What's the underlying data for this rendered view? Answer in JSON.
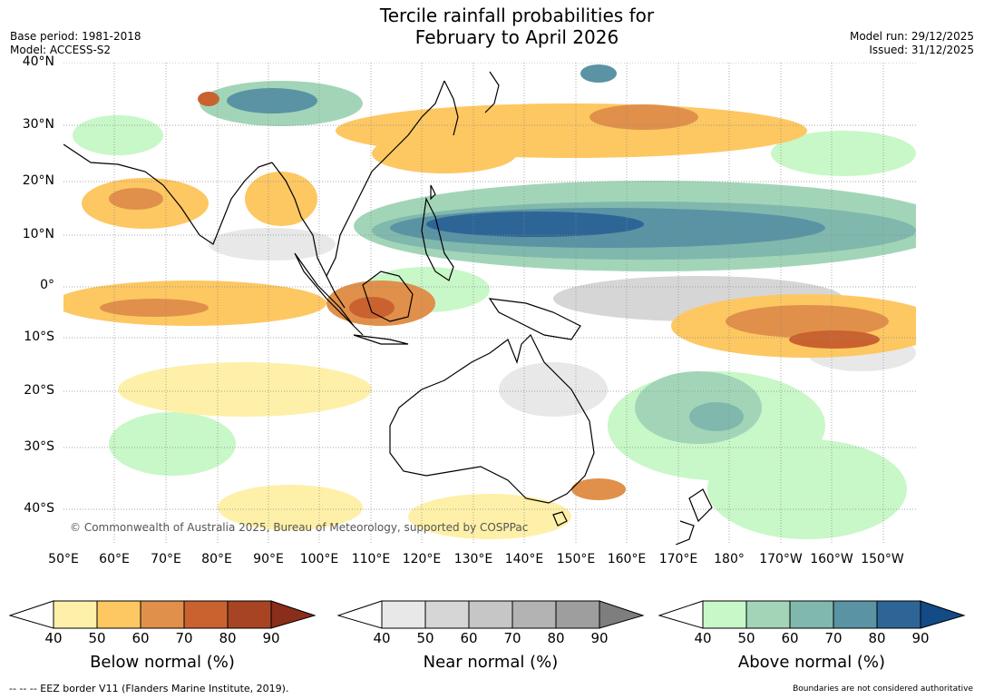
{
  "title_line1": "Tercile rainfall probabilities for",
  "title_line2": "February to April 2026",
  "base_period": "Base period: 1981-2018",
  "model": "Model: ACCESS-S2",
  "model_run": "Model run: 29/12/2025",
  "issued": "Issued: 31/12/2025",
  "copyright": "© Commonwealth of Australia 2025, Bureau of Meteorology, supported by COSPPac",
  "lat_labels": [
    "40°N",
    "30°N",
    "20°N",
    "10°N",
    "0°",
    "10°S",
    "20°S",
    "30°S",
    "40°S"
  ],
  "lon_labels": [
    "50°E",
    "60°E",
    "70°E",
    "80°E",
    "90°E",
    "100°E",
    "110°E",
    "120°E",
    "130°E",
    "140°E",
    "150°E",
    "160°E",
    "170°E",
    "180°",
    "170°W",
    "160°W",
    "150°W"
  ],
  "colorbars": [
    {
      "title": "Below normal (%)",
      "ticks": [
        "40",
        "50",
        "60",
        "70",
        "80",
        "90"
      ],
      "colors": [
        "#ffffff",
        "#fef0a8",
        "#fdc762",
        "#e0904a",
        "#c9622f",
        "#a74423",
        "#8a2d1a"
      ]
    },
    {
      "title": "Near normal (%)",
      "ticks": [
        "40",
        "50",
        "60",
        "70",
        "80",
        "90"
      ],
      "colors": [
        "#ffffff",
        "#e8e8e8",
        "#d6d6d6",
        "#c6c6c6",
        "#b3b3b3",
        "#9e9e9e",
        "#7e7e7e"
      ]
    },
    {
      "title": "Above normal (%)",
      "ticks": [
        "40",
        "50",
        "60",
        "70",
        "80",
        "90"
      ],
      "colors": [
        "#ffffff",
        "#c8f7c8",
        "#a2d5b8",
        "#80b8ad",
        "#5a93a3",
        "#2e6597",
        "#124b86"
      ]
    }
  ],
  "footer_left": "--  --  -- EEZ border V11 (Flanders Marine Institute, 2019).",
  "footer_right": "Boundaries are not considered authoritative"
}
